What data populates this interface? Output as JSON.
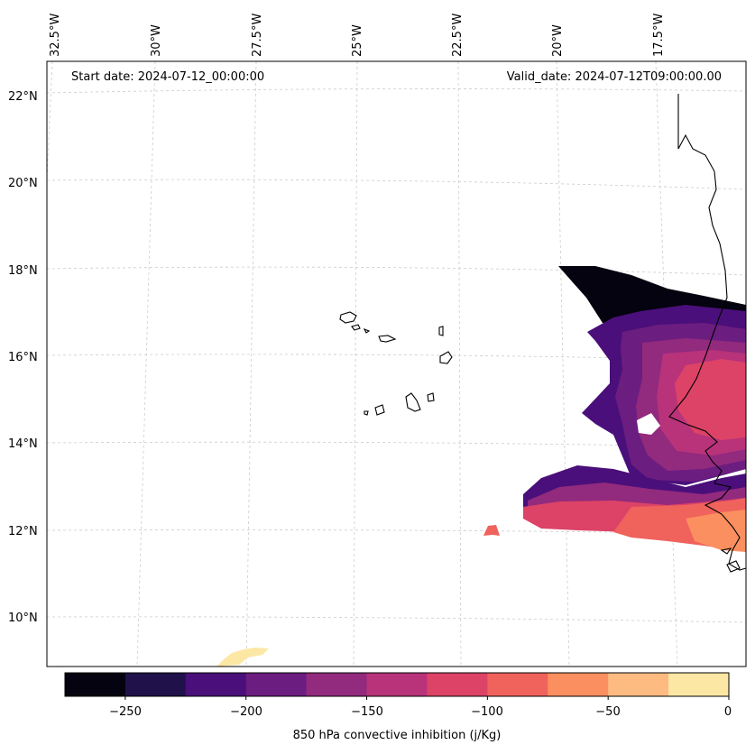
{
  "header": {
    "start_date": "Start date: 2024-07-12_00:00:00",
    "valid_date": "Valid_date: 2024-07-12T09:00:00.00"
  },
  "map": {
    "lon_ticks": [
      "32.5°W",
      "30°W",
      "27.5°W",
      "25°W",
      "22.5°W",
      "20°W",
      "17.5°W"
    ],
    "lat_ticks": [
      "22°N",
      "20°N",
      "18°N",
      "16°N",
      "14°N",
      "12°N",
      "10°N"
    ],
    "region_note": "Cape Verde and West African coast"
  },
  "colorbar": {
    "label": "850 hPa convective inhibition (j/Kg)",
    "ticks": [
      "−250",
      "−200",
      "−150",
      "−100",
      "−50",
      "0"
    ],
    "levels": [
      -275,
      -250,
      -225,
      -200,
      -175,
      -150,
      -125,
      -100,
      -75,
      -50,
      -25,
      0
    ],
    "colors": [
      "#04030f",
      "#21114a",
      "#4a0f7a",
      "#6c1d80",
      "#922a7e",
      "#b8337a",
      "#dc4366",
      "#f0625c",
      "#fc8f5f",
      "#fdbb81",
      "#fde7a5"
    ]
  }
}
